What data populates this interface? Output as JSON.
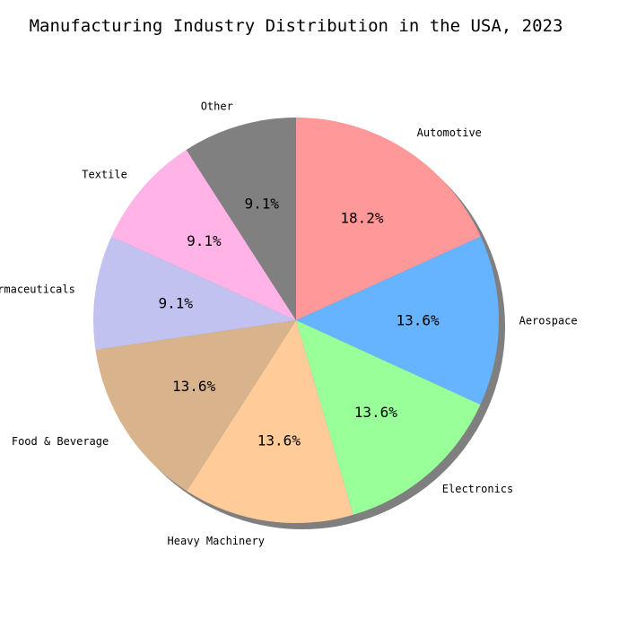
{
  "chart_data": {
    "type": "pie",
    "title": "Manufacturing Industry Distribution in the USA, 2023",
    "shadow": true,
    "start_angle_deg": 90,
    "direction": "clockwise",
    "slices": [
      {
        "label": "Automotive",
        "value": 18.2,
        "pct_label": "18.2%",
        "color": "#ff9999"
      },
      {
        "label": "Aerospace",
        "value": 13.6,
        "pct_label": "13.6%",
        "color": "#66b3ff"
      },
      {
        "label": "Electronics",
        "value": 13.6,
        "pct_label": "13.6%",
        "color": "#99ff99"
      },
      {
        "label": "Heavy Machinery",
        "value": 13.6,
        "pct_label": "13.6%",
        "color": "#ffcc99"
      },
      {
        "label": "Food & Beverage",
        "value": 13.6,
        "pct_label": "13.6%",
        "color": "#d9b38c"
      },
      {
        "label": "Pharmaceuticals",
        "value": 9.1,
        "pct_label": "9.1%",
        "color": "#c2c2f0"
      },
      {
        "label": "Textile",
        "value": 9.1,
        "pct_label": "9.1%",
        "color": "#ffb3e6"
      },
      {
        "label": "Other",
        "value": 9.1,
        "pct_label": "9.1%",
        "color": "#808080"
      }
    ]
  }
}
